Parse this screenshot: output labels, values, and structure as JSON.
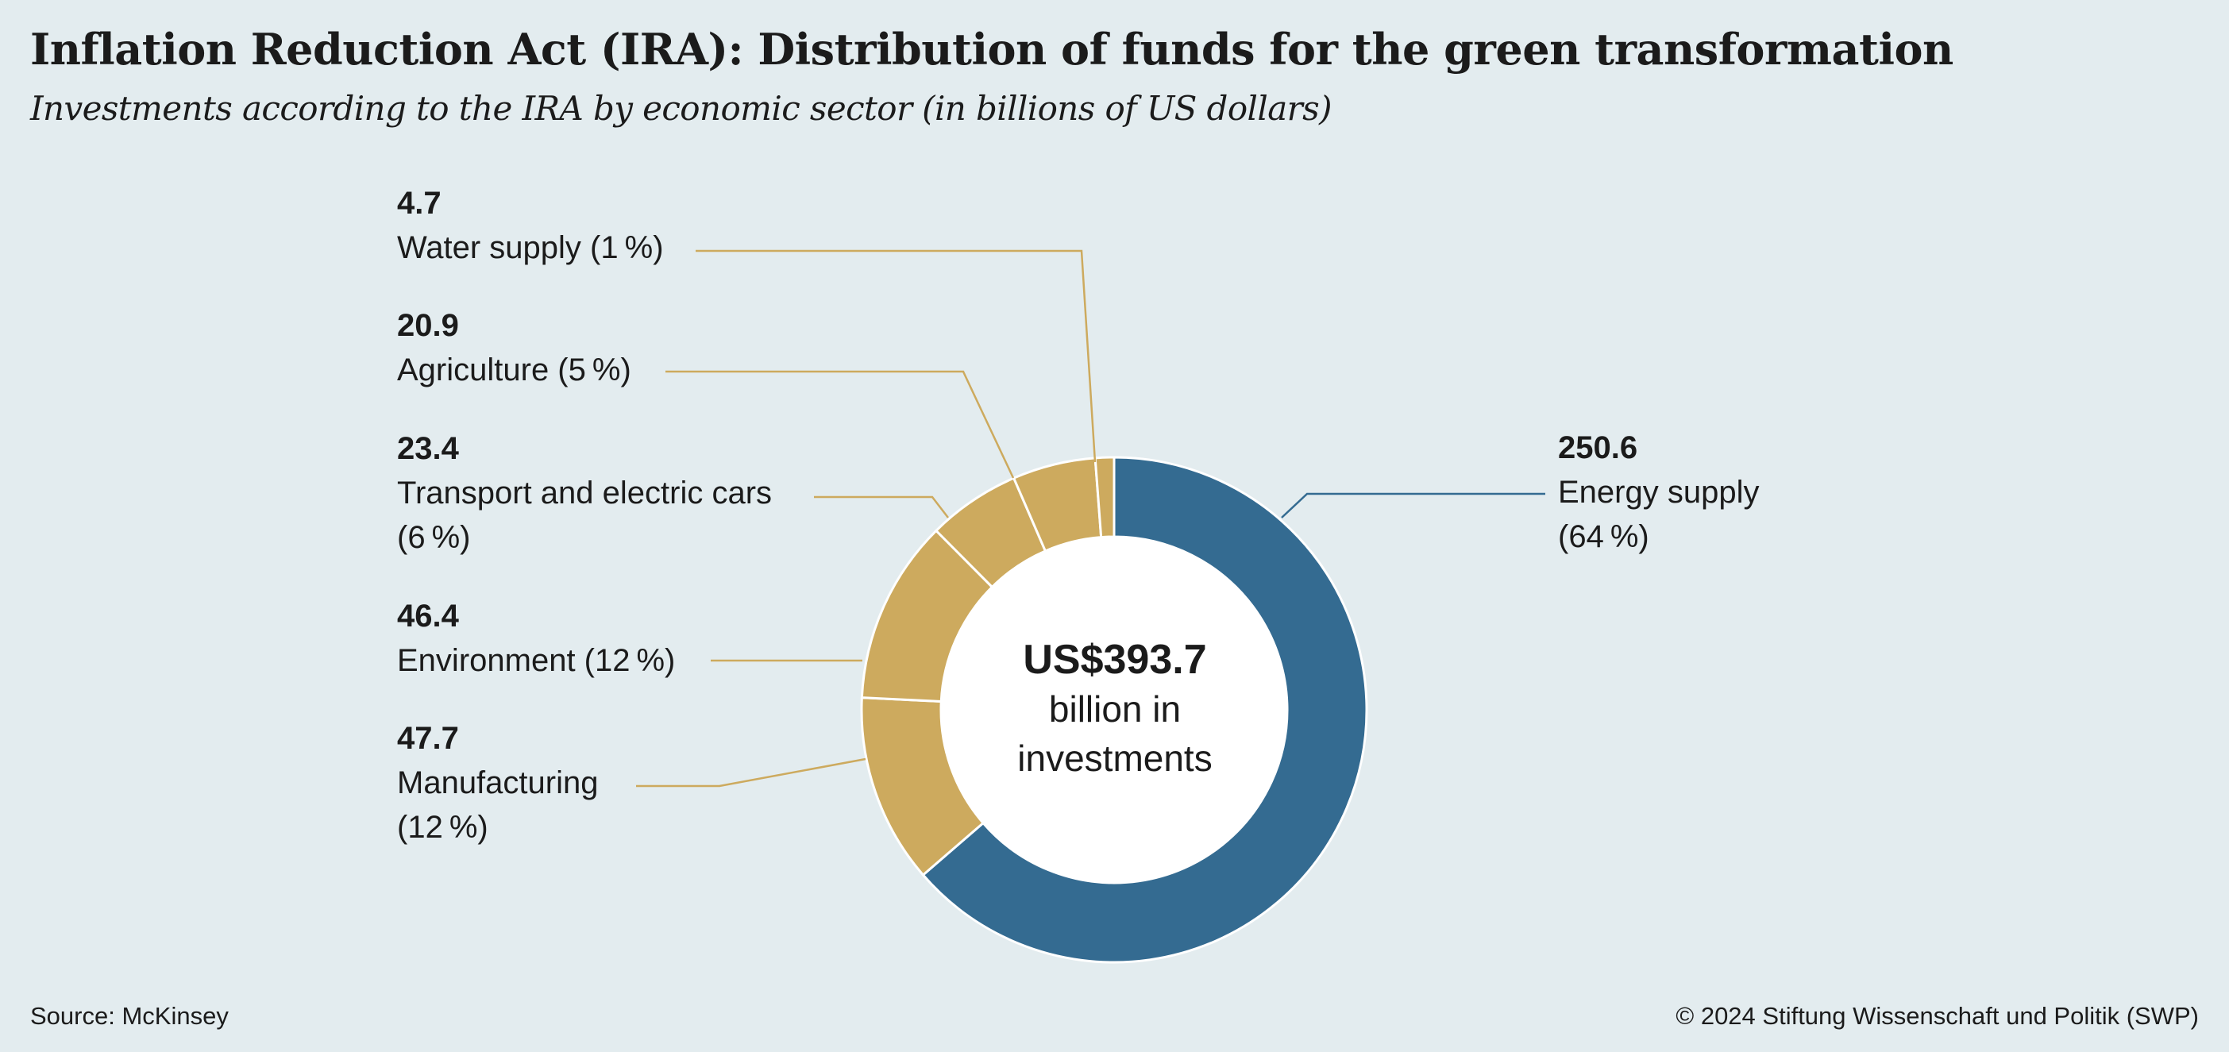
{
  "header": {
    "title": "Inflation Reduction Act (IRA): Distribution of funds for the green transformation",
    "subtitle": "Investments according to the IRA by economic sector (in billions of US dollars)"
  },
  "center_label": {
    "amount": "US$393.7",
    "line1": "billion in",
    "line2": "investments"
  },
  "labels": {
    "water": {
      "value": "4.7",
      "name": "Water supply (1 %)"
    },
    "agriculture": {
      "value": "20.9",
      "name": "Agriculture (5 %)"
    },
    "transport": {
      "value": "23.4",
      "name_l1": "Transport and electric cars",
      "name_l2": "(6 %)"
    },
    "environment": {
      "value": "46.4",
      "name": "Environment (12 %)"
    },
    "manufacturing": {
      "value": "47.7",
      "name_l1": "Manufacturing",
      "name_l2": "(12 %)"
    },
    "energy": {
      "value": "250.6",
      "name_l1": "Energy supply",
      "name_l2": "(64 %)"
    }
  },
  "footer": {
    "source": "Source: McKinsey",
    "copyright": "© 2024 Stiftung Wissenschaft und Politik (SWP)"
  },
  "chart_data": {
    "type": "pie",
    "donut": true,
    "total": 393.7,
    "series": [
      {
        "name": "Energy supply",
        "value": 250.6,
        "percent": 64,
        "color": "#346b91"
      },
      {
        "name": "Manufacturing",
        "value": 47.7,
        "percent": 12,
        "color": "#cdaa5e"
      },
      {
        "name": "Environment",
        "value": 46.4,
        "percent": 12,
        "color": "#cdaa5e"
      },
      {
        "name": "Transport and electric cars",
        "value": 23.4,
        "percent": 6,
        "color": "#cdaa5e"
      },
      {
        "name": "Agriculture",
        "value": 20.9,
        "percent": 5,
        "color": "#cdaa5e"
      },
      {
        "name": "Water supply",
        "value": 4.7,
        "percent": 1,
        "color": "#cdaa5e"
      }
    ]
  }
}
